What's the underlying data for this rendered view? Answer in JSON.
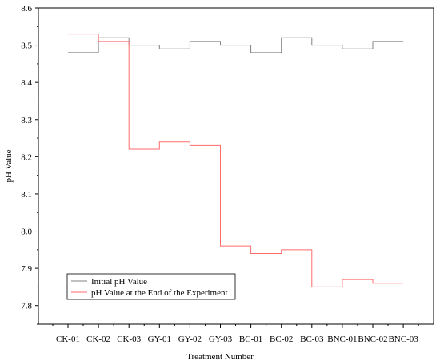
{
  "chart_data": {
    "type": "line",
    "step": true,
    "categories": [
      "CK-01",
      "CK-02",
      "CK-03",
      "GY-01",
      "GY-02",
      "GY-03",
      "BC-01",
      "BC-02",
      "BC-03",
      "BNC-01",
      "BNC-02",
      "BNC-03"
    ],
    "series": [
      {
        "name": "Initial pH Value",
        "color": "#808080",
        "values": [
          8.48,
          8.52,
          8.5,
          8.49,
          8.51,
          8.5,
          8.48,
          8.52,
          8.5,
          8.49,
          8.51,
          8.51
        ]
      },
      {
        "name": "pH Value at the End of the Experiment",
        "color": "#ff6b6b",
        "values": [
          8.53,
          8.51,
          8.22,
          8.24,
          8.23,
          7.96,
          7.94,
          7.95,
          7.85,
          7.87,
          7.86,
          7.86
        ]
      }
    ],
    "xlabel": "Treatment Number",
    "ylabel": "pH Value",
    "ylim": [
      7.75,
      8.6
    ],
    "yticks": [
      "7.8",
      "7.9",
      "8.0",
      "8.1",
      "8.2",
      "8.3",
      "8.4",
      "8.5",
      "8.6"
    ],
    "grid": false,
    "legend_position": "bottom-left"
  }
}
